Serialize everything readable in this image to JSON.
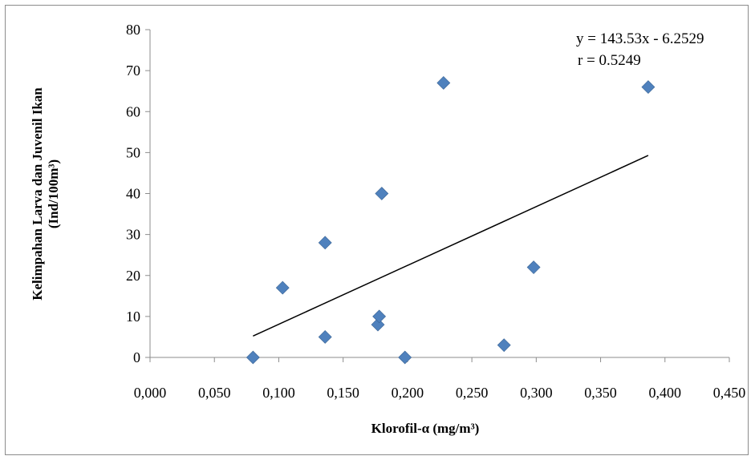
{
  "chart_data": {
    "type": "scatter",
    "xlabel": "Klorofil-α (mg/m³)",
    "ylabel_line1": "Kelimpahan Larva dan Juvenil Ikan",
    "ylabel_line2": "(Ind/100m³)",
    "xlim": [
      0,
      0.45
    ],
    "ylim": [
      0,
      80
    ],
    "x_ticks": [
      0,
      0.05,
      0.1,
      0.15,
      0.2,
      0.25,
      0.3,
      0.35,
      0.4,
      0.45
    ],
    "x_tick_labels": [
      "0,000",
      "0,050",
      "0,100",
      "0,150",
      "0,200",
      "0,250",
      "0,300",
      "0,350",
      "0,400",
      "0,450"
    ],
    "y_ticks": [
      0,
      10,
      20,
      30,
      40,
      50,
      60,
      70,
      80
    ],
    "y_tick_labels": [
      "0",
      "10",
      "20",
      "30",
      "40",
      "50",
      "60",
      "70",
      "80"
    ],
    "grid": false,
    "legend": "none",
    "marker_color": "#4f81bd",
    "series": [
      {
        "points": [
          {
            "x": 0.08,
            "y": 0
          },
          {
            "x": 0.103,
            "y": 17
          },
          {
            "x": 0.136,
            "y": 28
          },
          {
            "x": 0.136,
            "y": 5
          },
          {
            "x": 0.177,
            "y": 8
          },
          {
            "x": 0.178,
            "y": 10
          },
          {
            "x": 0.18,
            "y": 40
          },
          {
            "x": 0.198,
            "y": 0
          },
          {
            "x": 0.228,
            "y": 67
          },
          {
            "x": 0.275,
            "y": 3
          },
          {
            "x": 0.298,
            "y": 22
          },
          {
            "x": 0.387,
            "y": 66
          }
        ]
      }
    ],
    "trendline": {
      "slope": 143.53,
      "intercept": -6.2529,
      "x_start": 0.08,
      "x_end": 0.387,
      "color": "#000000"
    },
    "annotations": {
      "equation": "y = 143.53x - 6.2529",
      "r_value": "r = 0.5249"
    }
  }
}
